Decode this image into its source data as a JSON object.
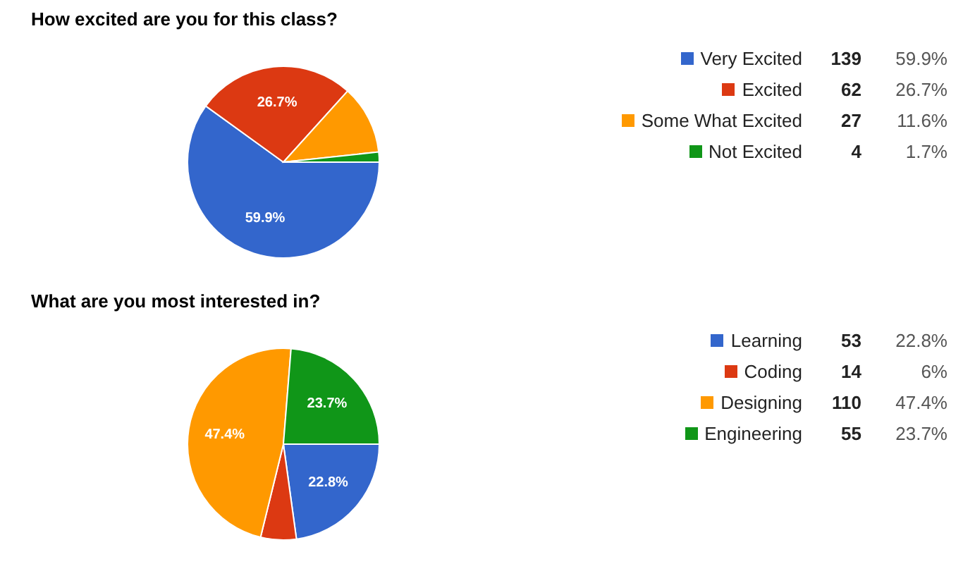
{
  "chart_data": [
    {
      "type": "pie",
      "title": "How excited are you for this class?",
      "categories": [
        "Very Excited",
        "Excited",
        "Some What Excited",
        "Not Excited"
      ],
      "values": [
        59.9,
        26.7,
        11.6,
        1.7
      ],
      "colors": [
        "#3366cc",
        "#dc3912",
        "#ff9900",
        "#109618"
      ],
      "value_labels": [
        "59.9%",
        "26.7%",
        null,
        null
      ],
      "annotations": [
        "139",
        "59.9%",
        "62",
        "26.7%",
        "27",
        "11.6%",
        "4",
        "1.7%"
      ],
      "legend": "right"
    },
    {
      "type": "pie",
      "title": "What are you most interested in?",
      "categories": [
        "Learning",
        "Coding",
        "Designing",
        "Engineering"
      ],
      "values": [
        22.8,
        6,
        47.4,
        23.7
      ],
      "colors": [
        "#3366cc",
        "#dc3912",
        "#ff9900",
        "#109618"
      ],
      "value_labels": [
        "22.8%",
        null,
        "47.4%",
        "23.7%"
      ],
      "annotations": [
        "53",
        "22.8%",
        "14",
        "6%",
        "110",
        "47.4%",
        "55",
        "23.7%"
      ],
      "legend": "right"
    }
  ]
}
